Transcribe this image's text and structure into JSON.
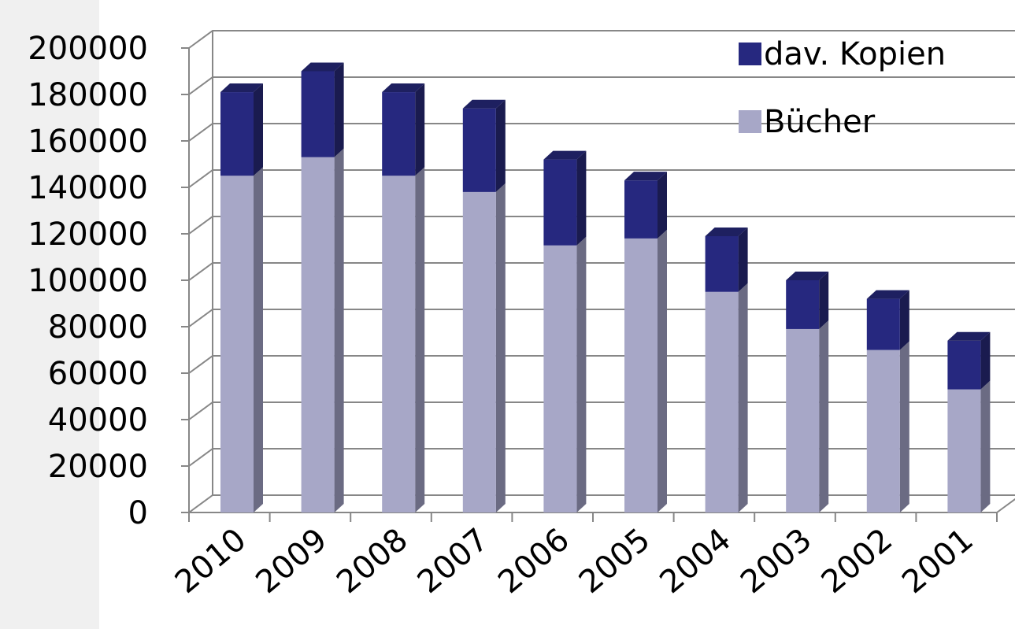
{
  "chart_data": {
    "type": "bar",
    "stacked": true,
    "three_d": true,
    "categories": [
      "2010",
      "2009",
      "2008",
      "2007",
      "2006",
      "2005",
      "2004",
      "2003",
      "2002",
      "2001"
    ],
    "series": [
      {
        "name": "Bücher",
        "color": "#a7a7c7",
        "values": [
          145000,
          153000,
          145000,
          138000,
          115000,
          118000,
          95000,
          79000,
          70000,
          53000
        ]
      },
      {
        "name": "dav. Kopien",
        "color": "#26287f",
        "values": [
          36000,
          37000,
          36000,
          36000,
          37000,
          25000,
          24000,
          21000,
          22000,
          21000
        ]
      }
    ],
    "legend_order": [
      "dav. Kopien",
      "Bücher"
    ],
    "ylim": [
      0,
      200000
    ],
    "yticks": [
      "0",
      "20000",
      "40000",
      "60000",
      "80000",
      "100000",
      "120000",
      "140000",
      "160000",
      "180000",
      "200000"
    ],
    "grid": true,
    "legend_position": "top-right"
  }
}
